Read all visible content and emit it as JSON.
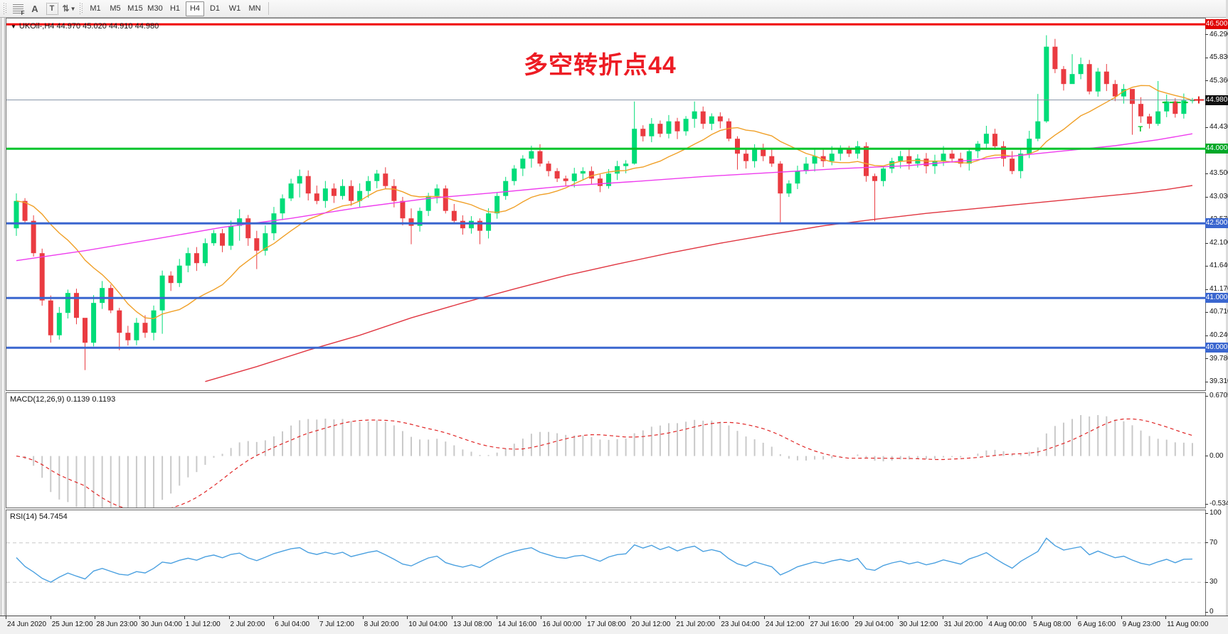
{
  "toolbar": {
    "tools": [
      {
        "name": "indicator-grid",
        "glyph": "F"
      },
      {
        "name": "text-label",
        "glyph": "A"
      },
      {
        "name": "text-box",
        "glyph": "T"
      },
      {
        "name": "arrange-cycle",
        "glyph": "⇅"
      }
    ],
    "timeframes": [
      "M1",
      "M5",
      "M15",
      "M30",
      "H1",
      "H4",
      "D1",
      "W1",
      "MN"
    ],
    "active_timeframe": "H4"
  },
  "chart": {
    "symbol_line": "UKOil-,H4  44.970 45.020 44.910 44.980",
    "annotation": "多空转折点44",
    "annotation_color": "#ed1c24"
  },
  "macd": {
    "label": "MACD(12,26,9) 0.1139 0.1193",
    "axis": [
      "0.6705",
      "0.00",
      "-0.5342"
    ]
  },
  "rsi": {
    "label": "RSI(14) 54.7454",
    "axis": [
      "100",
      "70",
      "30",
      "0"
    ]
  },
  "price_axis_ticks": [
    "46.290",
    "45.830",
    "45.360",
    "44.900",
    "44.430",
    "43.500",
    "43.030",
    "42.570",
    "42.100",
    "41.640",
    "41.170",
    "40.710",
    "40.240",
    "39.780",
    "39.310"
  ],
  "time_axis": [
    "24 Jun 2020",
    "25 Jun 12:00",
    "28 Jun 23:00",
    "30 Jun 04:00",
    "1 Jul 12:00",
    "2 Jul 20:00",
    "6 Jul 04:00",
    "7 Jul 12:00",
    "8 Jul 20:00",
    "10 Jul 04:00",
    "13 Jul 08:00",
    "14 Jul 16:00",
    "16 Jul 00:00",
    "17 Jul 08:00",
    "20 Jul 12:00",
    "21 Jul 20:00",
    "23 Jul 04:00",
    "24 Jul 12:00",
    "27 Jul 16:00",
    "29 Jul 04:00",
    "30 Jul 12:00",
    "31 Jul 20:00",
    "4 Aug 00:00",
    "5 Aug 08:00",
    "6 Aug 16:00",
    "9 Aug 23:00",
    "11 Aug 00:00"
  ],
  "chart_data": {
    "type": "candlestick",
    "symbol": "UKOil-",
    "timeframe": "H4",
    "ohlc_last": {
      "open": 44.97,
      "high": 45.02,
      "low": 44.91,
      "close": 44.98
    },
    "ylim": [
      39.16,
      46.617
    ],
    "first_open": 42.4,
    "closes": [
      42.95,
      42.55,
      41.9,
      40.95,
      40.25,
      40.7,
      41.1,
      40.6,
      40.1,
      40.9,
      41.2,
      40.75,
      40.3,
      40.15,
      40.5,
      40.3,
      40.75,
      41.45,
      41.3,
      41.65,
      41.9,
      41.7,
      42.1,
      42.3,
      42.05,
      42.45,
      42.6,
      42.2,
      41.95,
      42.3,
      42.7,
      43.0,
      43.3,
      43.45,
      43.1,
      42.95,
      43.2,
      43.05,
      43.25,
      42.95,
      43.15,
      43.35,
      43.5,
      43.25,
      42.95,
      42.6,
      42.45,
      42.75,
      43.05,
      43.2,
      42.75,
      42.55,
      42.4,
      42.55,
      42.35,
      42.7,
      43.05,
      43.35,
      43.6,
      43.8,
      43.95,
      43.7,
      43.55,
      43.4,
      43.35,
      43.5,
      43.55,
      43.4,
      43.25,
      43.5,
      43.65,
      43.7,
      44.4,
      44.25,
      44.5,
      44.3,
      44.55,
      44.35,
      44.6,
      44.75,
      44.5,
      44.65,
      44.55,
      44.2,
      43.9,
      43.75,
      44.0,
      43.85,
      43.7,
      43.1,
      43.3,
      43.55,
      43.7,
      43.85,
      43.75,
      43.9,
      44.0,
      43.9,
      44.05,
      43.45,
      43.35,
      43.6,
      43.75,
      43.85,
      43.7,
      43.8,
      43.65,
      43.75,
      43.9,
      43.8,
      43.7,
      43.95,
      44.1,
      44.3,
      44.05,
      43.8,
      43.55,
      43.9,
      44.2,
      44.55,
      46.05,
      45.6,
      45.3,
      45.5,
      45.7,
      45.15,
      45.55,
      45.3,
      45.05,
      45.2,
      44.9,
      44.65,
      44.5,
      44.75,
      44.95,
      44.7,
      44.97,
      44.98
    ],
    "wick_overrides": {
      "8": [
        40.45,
        39.55
      ],
      "12": [
        40.8,
        39.95
      ],
      "17": [
        41.55,
        40.28
      ],
      "26": [
        42.78,
        42.15
      ],
      "28": [
        42.35,
        41.58
      ],
      "33": [
        43.58,
        43.02
      ],
      "46": [
        42.8,
        42.08
      ],
      "54": [
        42.6,
        42.08
      ],
      "60": [
        44.06,
        43.62
      ],
      "72": [
        44.95,
        43.68
      ],
      "79": [
        44.95,
        44.42
      ],
      "84": [
        44.25,
        43.58
      ],
      "89": [
        43.75,
        42.52
      ],
      "100": [
        43.5,
        42.54
      ],
      "113": [
        44.46,
        44.0
      ],
      "119": [
        45.1,
        44.15
      ],
      "120": [
        46.28,
        44.52
      ],
      "123": [
        45.9,
        45.42
      ],
      "130": [
        45.0,
        44.28
      ],
      "133": [
        45.36,
        44.46
      ],
      "137": [
        45.02,
        44.91
      ]
    },
    "colors": {
      "up": "#00dc78",
      "down": "#ea3b41"
    },
    "levels": [
      {
        "price": 46.5,
        "color": "#f00000",
        "width": 3,
        "label": "46.500",
        "badge_bg": "#e00000"
      },
      {
        "price": 44.0,
        "color": "#00c42c",
        "width": 3,
        "label": "44.000",
        "badge_bg": "#00a828"
      },
      {
        "price": 42.5,
        "color": "#3a66cf",
        "width": 3,
        "label": "42.500",
        "badge_bg": "#3a66cf"
      },
      {
        "price": 41.0,
        "color": "#3a66cf",
        "width": 3,
        "label": "41.000",
        "badge_bg": "#3a66cf"
      },
      {
        "price": 40.0,
        "color": "#3a66cf",
        "width": 3,
        "label": "40.000",
        "badge_bg": "#3a66cf"
      }
    ],
    "current_price": {
      "value": 44.98,
      "label": "44.980",
      "line_color": "#8593a6",
      "badge_bg": "#111111"
    },
    "moving_averages": [
      {
        "name": "ma-fast",
        "color": "#f0a028",
        "type": "sma",
        "period": 13
      },
      {
        "name": "ma-medium",
        "color": "#ee3cee",
        "type": "polyline",
        "points": [
          [
            0,
            41.75
          ],
          [
            8,
            41.95
          ],
          [
            16,
            42.18
          ],
          [
            24,
            42.42
          ],
          [
            32,
            42.6
          ],
          [
            40,
            42.82
          ],
          [
            48,
            43.0
          ],
          [
            56,
            43.12
          ],
          [
            64,
            43.25
          ],
          [
            72,
            43.34
          ],
          [
            80,
            43.44
          ],
          [
            88,
            43.52
          ],
          [
            96,
            43.6
          ],
          [
            104,
            43.66
          ],
          [
            112,
            43.78
          ],
          [
            120,
            43.92
          ],
          [
            128,
            44.06
          ],
          [
            133,
            44.18
          ],
          [
            137,
            44.3
          ]
        ]
      },
      {
        "name": "ma-slow",
        "color": "#e03540",
        "type": "polyline",
        "points": [
          [
            22,
            39.32
          ],
          [
            28,
            39.62
          ],
          [
            34,
            39.95
          ],
          [
            40,
            40.25
          ],
          [
            46,
            40.6
          ],
          [
            52,
            40.9
          ],
          [
            58,
            41.18
          ],
          [
            64,
            41.45
          ],
          [
            70,
            41.68
          ],
          [
            76,
            41.9
          ],
          [
            82,
            42.1
          ],
          [
            88,
            42.28
          ],
          [
            94,
            42.45
          ],
          [
            100,
            42.58
          ],
          [
            106,
            42.7
          ],
          [
            112,
            42.8
          ],
          [
            118,
            42.9
          ],
          [
            124,
            43.0
          ],
          [
            130,
            43.1
          ],
          [
            134,
            43.18
          ],
          [
            137,
            43.26
          ]
        ]
      }
    ],
    "markers": {
      "t_marker": {
        "index": 131,
        "price": 44.4,
        "color": "#00c42c",
        "glyph": "T"
      },
      "dash_segment": {
        "from_index": 133.5,
        "to_index": 136.8,
        "price": 44.93,
        "color": "#00c42c"
      },
      "price_cross": {
        "price": 44.98,
        "color": "#e02020"
      }
    },
    "macd": {
      "params": [
        12,
        26,
        9
      ],
      "displayed_values": [
        0.1139,
        0.1193
      ],
      "range": [
        -0.5342,
        0.6705
      ],
      "histogram_color": "#c9c9c9",
      "signal_color": "#e02525"
    },
    "rsi": {
      "period": 14,
      "displayed_value": 54.7454,
      "range": [
        0,
        100
      ],
      "gridlines": [
        70,
        30
      ],
      "line_color": "#4aa0e0"
    }
  }
}
